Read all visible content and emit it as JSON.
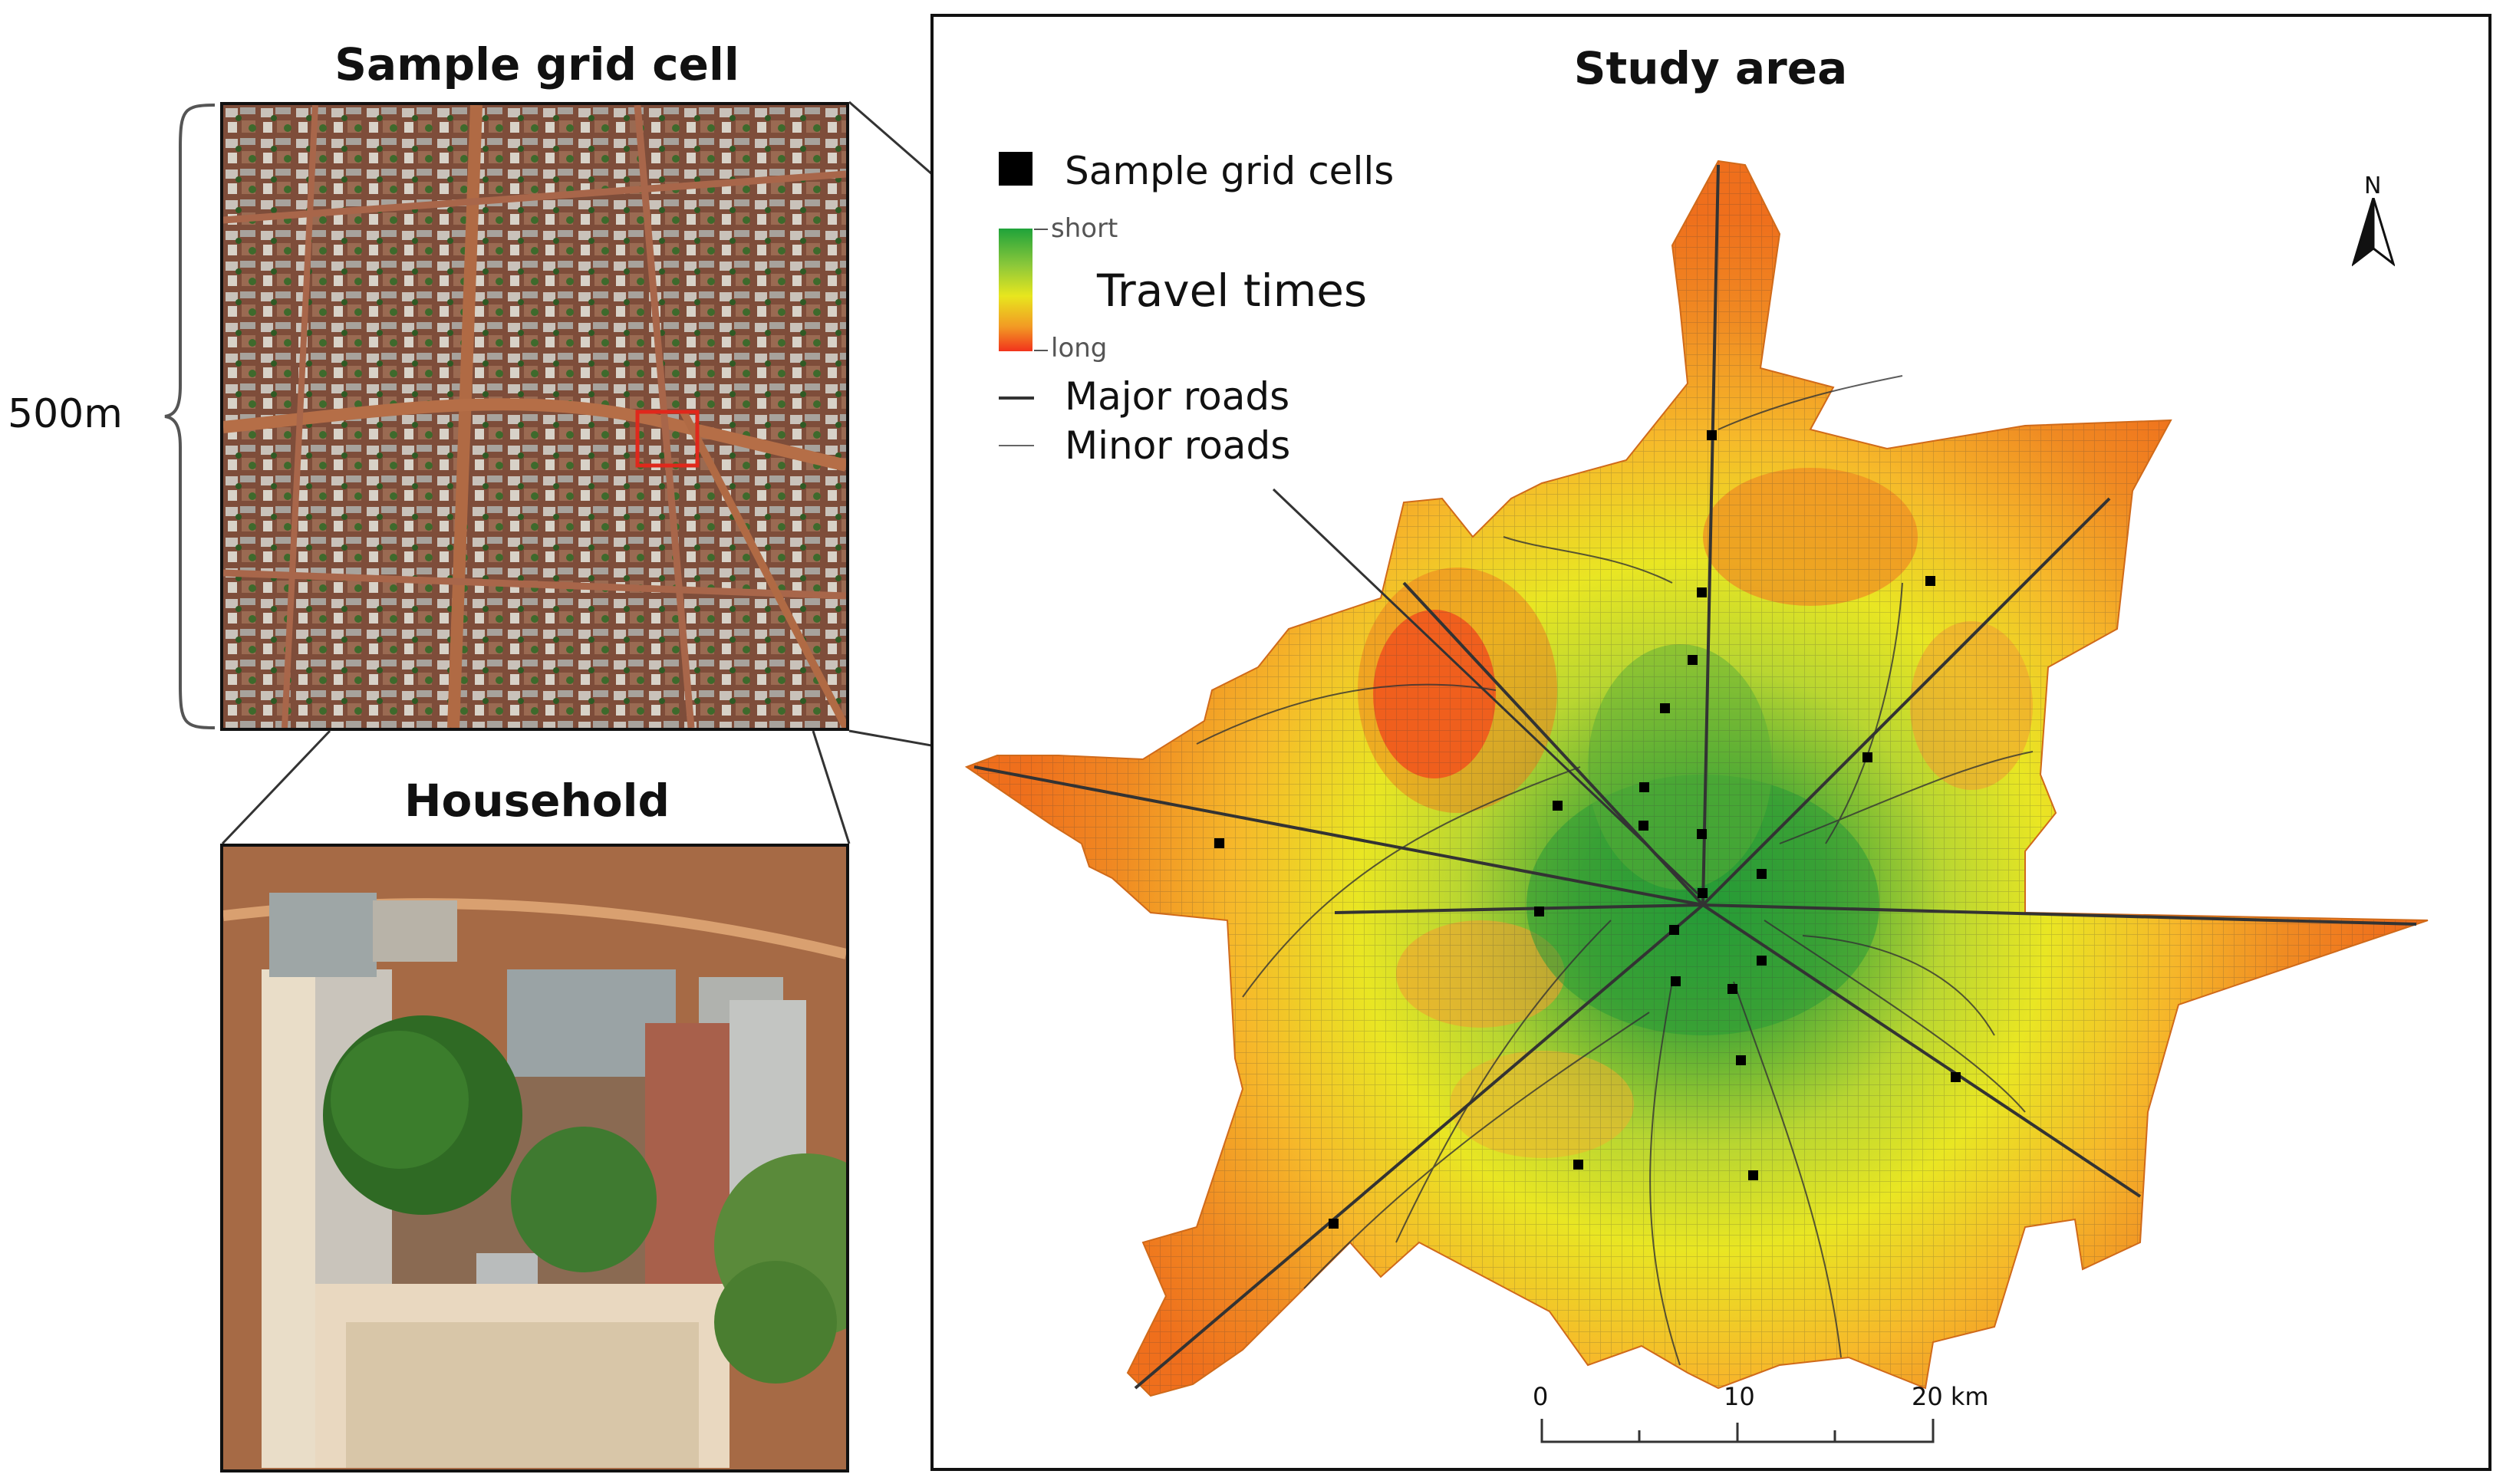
{
  "figure": {
    "left_panel": {
      "sample_title": "Sample grid cell",
      "household_title": "Household",
      "scale_label": "500m"
    },
    "study_area": {
      "title": "Study area",
      "legend": {
        "sample_cells": "Sample grid cells",
        "short_label": "short",
        "long_label": "long",
        "travel_times": "Travel times",
        "major_roads": "Major roads",
        "minor_roads": "Minor roads"
      },
      "north_label": "N",
      "scalebar": {
        "ticks": [
          "0",
          "10",
          "20 km"
        ]
      },
      "colors": {
        "short": "#1fa33a",
        "mid": "#e8e61e",
        "long": "#f2331c",
        "outer": "#f07a1e"
      }
    }
  }
}
